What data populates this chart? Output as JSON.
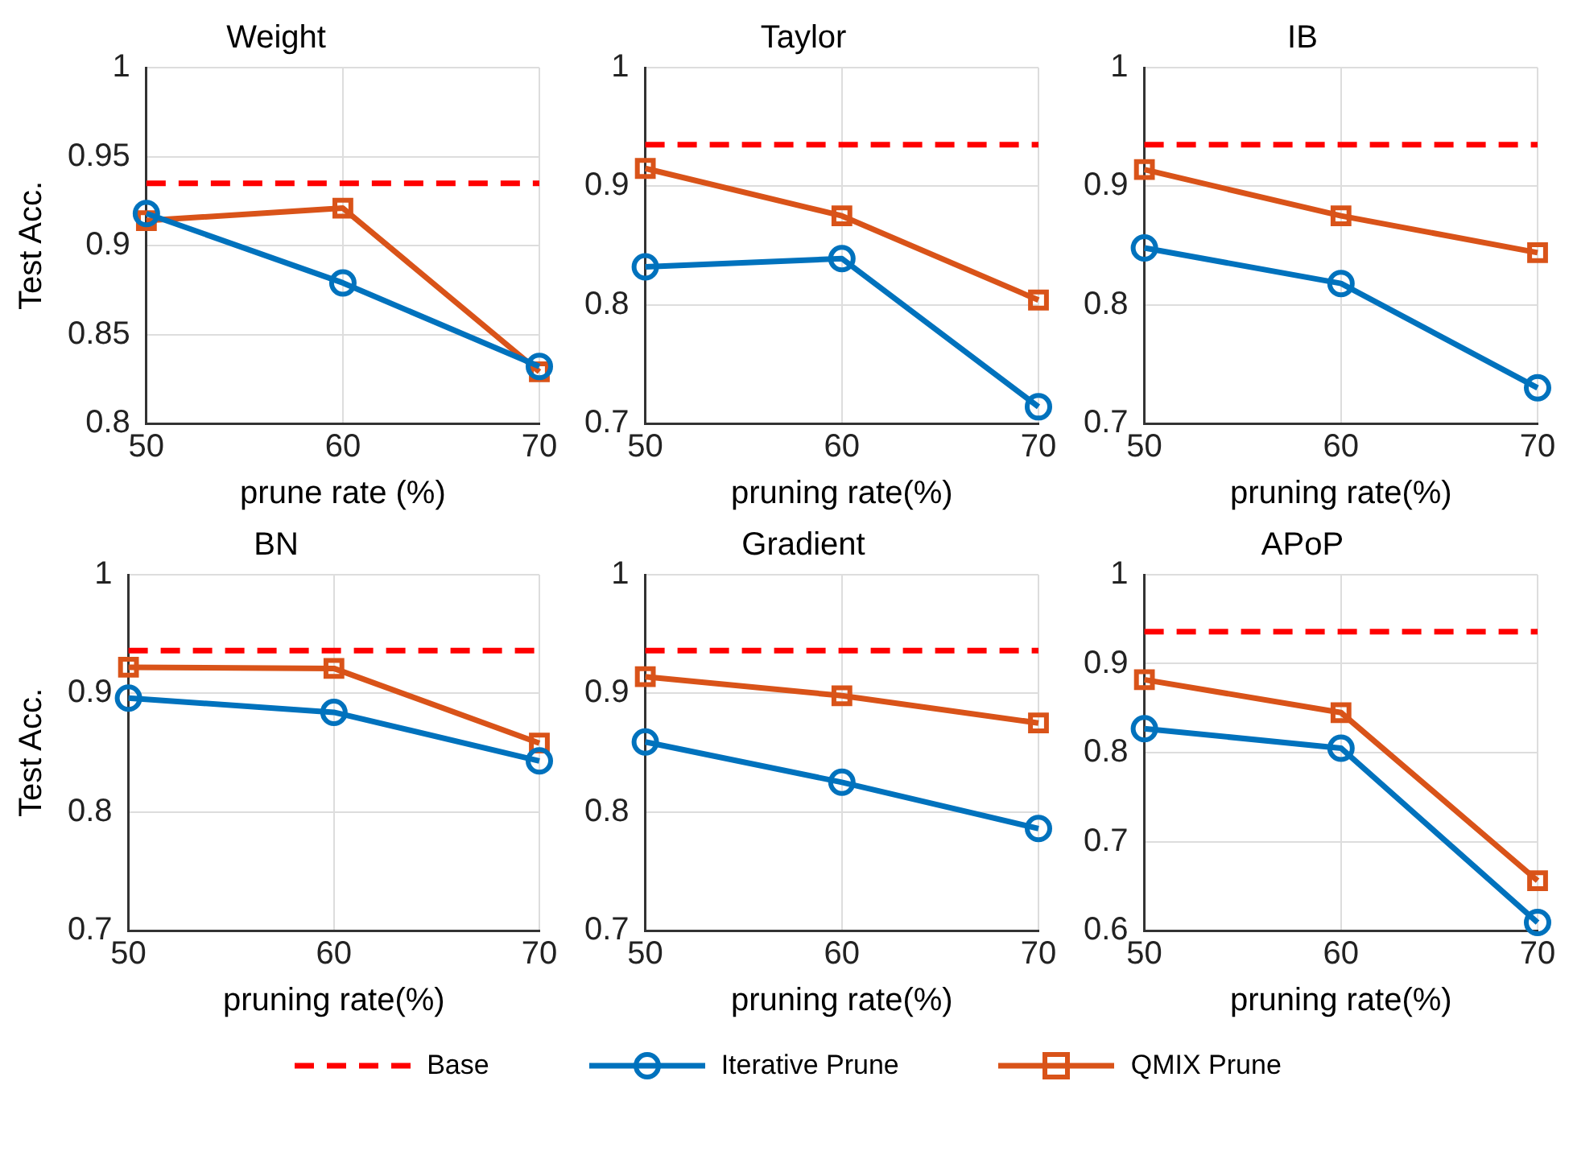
{
  "chart_data": [
    {
      "type": "line",
      "title": "Weight",
      "xlabel": "prune rate (%)",
      "ylabel": "Test Acc.",
      "x": [
        50,
        60,
        70
      ],
      "xlim": [
        50,
        70
      ],
      "xticks": [
        50,
        60,
        70
      ],
      "ylim": [
        0.8,
        1
      ],
      "yticks": [
        0.8,
        0.85,
        0.9,
        0.95,
        1
      ],
      "grid": true,
      "legend": "bottom",
      "series": [
        {
          "name": "Base",
          "color": "#ff0000",
          "values": [
            0.935,
            0.935,
            0.935
          ],
          "marker": "none",
          "line_style": "dashed"
        },
        {
          "name": "Iterative Prune",
          "color": "#0072bd",
          "values": [
            0.918,
            0.879,
            0.832
          ],
          "marker": "circle",
          "line_style": "solid"
        },
        {
          "name": "QMIX Prune",
          "color": "#d95319",
          "values": [
            0.914,
            0.921,
            0.829
          ],
          "marker": "square",
          "line_style": "solid"
        }
      ]
    },
    {
      "type": "line",
      "title": "Taylor",
      "xlabel": "pruning rate(%)",
      "x": [
        50,
        60,
        70
      ],
      "xlim": [
        50,
        70
      ],
      "xticks": [
        50,
        60,
        70
      ],
      "ylim": [
        0.7,
        1
      ],
      "yticks": [
        0.7,
        0.8,
        0.9,
        1
      ],
      "grid": true,
      "series": [
        {
          "color": "#ff0000",
          "values": [
            0.935,
            0.935,
            0.935
          ],
          "marker": "none",
          "line_style": "dashed"
        },
        {
          "color": "#0072bd",
          "values": [
            0.832,
            0.839,
            0.714
          ],
          "marker": "circle",
          "line_style": "solid"
        },
        {
          "color": "#d95319",
          "values": [
            0.915,
            0.875,
            0.804
          ],
          "marker": "square",
          "line_style": "solid"
        }
      ]
    },
    {
      "type": "line",
      "title": "IB",
      "xlabel": "pruning rate(%)",
      "x": [
        50,
        60,
        70
      ],
      "xlim": [
        50,
        70
      ],
      "xticks": [
        50,
        60,
        70
      ],
      "ylim": [
        0.7,
        1
      ],
      "yticks": [
        0.7,
        0.8,
        0.9,
        1
      ],
      "grid": true,
      "series": [
        {
          "color": "#ff0000",
          "values": [
            0.935,
            0.935,
            0.935
          ],
          "marker": "none",
          "line_style": "dashed"
        },
        {
          "color": "#0072bd",
          "values": [
            0.848,
            0.818,
            0.73
          ],
          "marker": "circle",
          "line_style": "solid"
        },
        {
          "color": "#d95319",
          "values": [
            0.914,
            0.875,
            0.844
          ],
          "marker": "square",
          "line_style": "solid"
        }
      ]
    },
    {
      "type": "line",
      "title": "BN",
      "xlabel": "pruning rate(%)",
      "ylabel": "Test Acc.",
      "x": [
        50,
        60,
        70
      ],
      "xlim": [
        50,
        70
      ],
      "xticks": [
        50,
        60,
        70
      ],
      "ylim": [
        0.7,
        1
      ],
      "yticks": [
        0.7,
        0.8,
        0.9,
        1
      ],
      "grid": true,
      "series": [
        {
          "color": "#ff0000",
          "values": [
            0.936,
            0.936,
            0.936
          ],
          "marker": "none",
          "line_style": "dashed"
        },
        {
          "color": "#0072bd",
          "values": [
            0.896,
            0.884,
            0.843
          ],
          "marker": "circle",
          "line_style": "solid"
        },
        {
          "color": "#d95319",
          "values": [
            0.922,
            0.921,
            0.858
          ],
          "marker": "square",
          "line_style": "solid"
        }
      ]
    },
    {
      "type": "line",
      "title": "Gradient",
      "xlabel": "pruning rate(%)",
      "x": [
        50,
        60,
        70
      ],
      "xlim": [
        50,
        70
      ],
      "xticks": [
        50,
        60,
        70
      ],
      "ylim": [
        0.7,
        1
      ],
      "yticks": [
        0.7,
        0.8,
        0.9,
        1
      ],
      "grid": true,
      "series": [
        {
          "color": "#ff0000",
          "values": [
            0.936,
            0.936,
            0.936
          ],
          "marker": "none",
          "line_style": "dashed"
        },
        {
          "color": "#0072bd",
          "values": [
            0.859,
            0.825,
            0.786
          ],
          "marker": "circle",
          "line_style": "solid"
        },
        {
          "color": "#d95319",
          "values": [
            0.914,
            0.898,
            0.875
          ],
          "marker": "square",
          "line_style": "solid"
        }
      ]
    },
    {
      "type": "line",
      "title": "APoP",
      "xlabel": "pruning rate(%)",
      "x": [
        50,
        60,
        70
      ],
      "xlim": [
        50,
        70
      ],
      "xticks": [
        50,
        60,
        70
      ],
      "ylim": [
        0.6,
        1
      ],
      "yticks": [
        0.6,
        0.7,
        0.8,
        0.9,
        1
      ],
      "grid": true,
      "series": [
        {
          "color": "#ff0000",
          "values": [
            0.936,
            0.936,
            0.936
          ],
          "marker": "none",
          "line_style": "dashed"
        },
        {
          "color": "#0072bd",
          "values": [
            0.827,
            0.805,
            0.609
          ],
          "marker": "circle",
          "line_style": "solid"
        },
        {
          "color": "#d95319",
          "values": [
            0.882,
            0.845,
            0.656
          ],
          "marker": "square",
          "line_style": "solid"
        }
      ]
    }
  ]
}
